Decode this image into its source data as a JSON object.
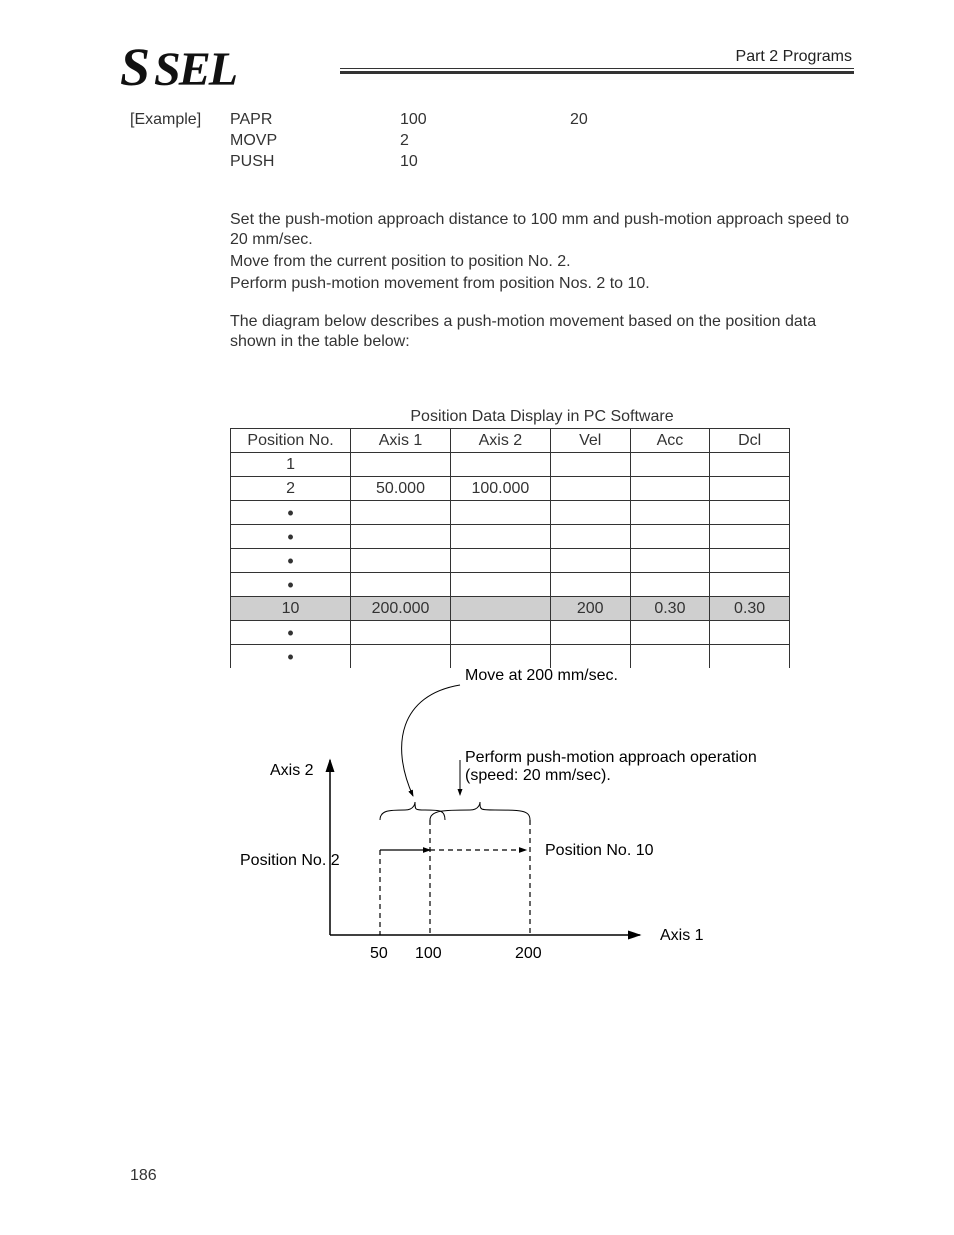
{
  "header": {
    "logo_s": "S",
    "logo_sel": "SEL",
    "section_label": "Part 2 Programs"
  },
  "example": {
    "label": "[Example]",
    "rows": [
      {
        "cmd": "PAPR",
        "op1": "100",
        "op2": "20"
      },
      {
        "cmd": "MOVP",
        "op1": "2",
        "op2": ""
      },
      {
        "cmd": "PUSH",
        "op1": "10",
        "op2": ""
      }
    ]
  },
  "body": {
    "p1": "Set the push-motion approach distance to 100 mm and push-motion approach speed to 20 mm/sec.",
    "p2": "Move from the current position to position No. 2.",
    "p3": "Perform push-motion movement from position Nos. 2 to 10.",
    "p4": "The diagram below describes a push-motion movement based on the position data shown in the table below:"
  },
  "table": {
    "title": "Position Data Display in PC Software",
    "columns": [
      "Position No.",
      "Axis 1",
      "Axis 2",
      "Vel",
      "Acc",
      "Dcl"
    ],
    "rows": [
      {
        "cells": [
          "1",
          "",
          "",
          "",
          "",
          ""
        ],
        "highlight": false
      },
      {
        "cells": [
          "2",
          "50.000",
          "100.000",
          "",
          "",
          ""
        ],
        "highlight": false
      },
      {
        "cells": [
          "•",
          "",
          "",
          "",
          "",
          ""
        ],
        "highlight": false,
        "dot": true
      },
      {
        "cells": [
          "•",
          "",
          "",
          "",
          "",
          ""
        ],
        "highlight": false,
        "dot": true
      },
      {
        "cells": [
          "•",
          "",
          "",
          "",
          "",
          ""
        ],
        "highlight": false,
        "dot": true
      },
      {
        "cells": [
          "•",
          "",
          "",
          "",
          "",
          ""
        ],
        "highlight": false,
        "dot": true
      },
      {
        "cells": [
          "10",
          "200.000",
          "",
          "200",
          "0.30",
          "0.30"
        ],
        "highlight": true
      },
      {
        "cells": [
          "•",
          "",
          "",
          "",
          "",
          ""
        ],
        "highlight": false,
        "dot": true
      },
      {
        "cells": [
          "•",
          "",
          "",
          "",
          "",
          ""
        ],
        "highlight": false,
        "dot": true
      }
    ]
  },
  "diagram": {
    "type": "diagram",
    "labels": {
      "move_label": "Move at 200 mm/sec.",
      "push_label_l1": "Perform push-motion approach operation",
      "push_label_l2": "(speed: 20 mm/sec).",
      "axis2": "Axis 2",
      "axis1": "Axis 1",
      "pos2": "Position No. 2",
      "pos10": "Position No. 10"
    },
    "axis_ticks": {
      "t1": "50",
      "t2": "100",
      "t3": "200"
    },
    "colors": {
      "stroke": "#000000",
      "dash": "#222222",
      "background": "#ffffff"
    }
  },
  "page_number": "186"
}
